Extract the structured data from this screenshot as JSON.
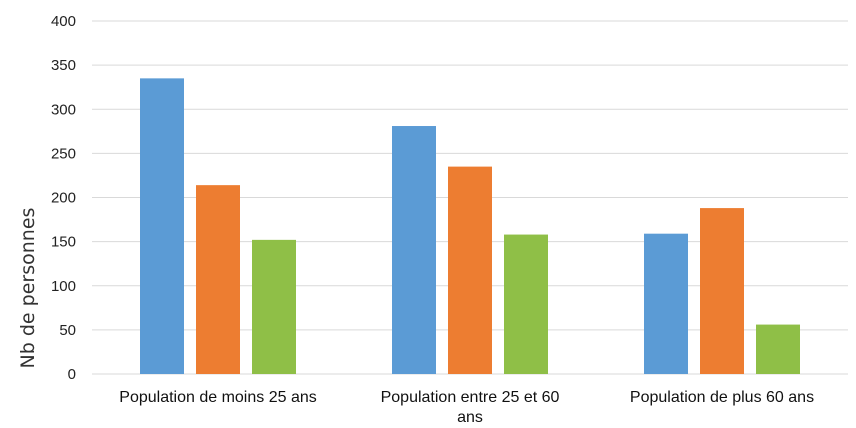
{
  "chart_data": {
    "type": "bar",
    "title": "",
    "xlabel": "",
    "ylabel": "Nb de personnes",
    "categories": [
      [
        "Population de moins 25 ans"
      ],
      [
        "Population entre 25 et 60",
        "ans"
      ],
      [
        "Population de plus 60 ans"
      ]
    ],
    "series": [
      {
        "values": [
          335,
          281,
          159
        ],
        "color": "#5b9bd5"
      },
      {
        "values": [
          214,
          235,
          188
        ],
        "color": "#ed7d31"
      },
      {
        "values": [
          152,
          158,
          56
        ],
        "color": "#8fbf47"
      }
    ],
    "ylim": [
      0,
      400
    ],
    "yticks": [
      0,
      50,
      100,
      150,
      200,
      250,
      300,
      350,
      400
    ],
    "grid": true,
    "legend": "none"
  }
}
